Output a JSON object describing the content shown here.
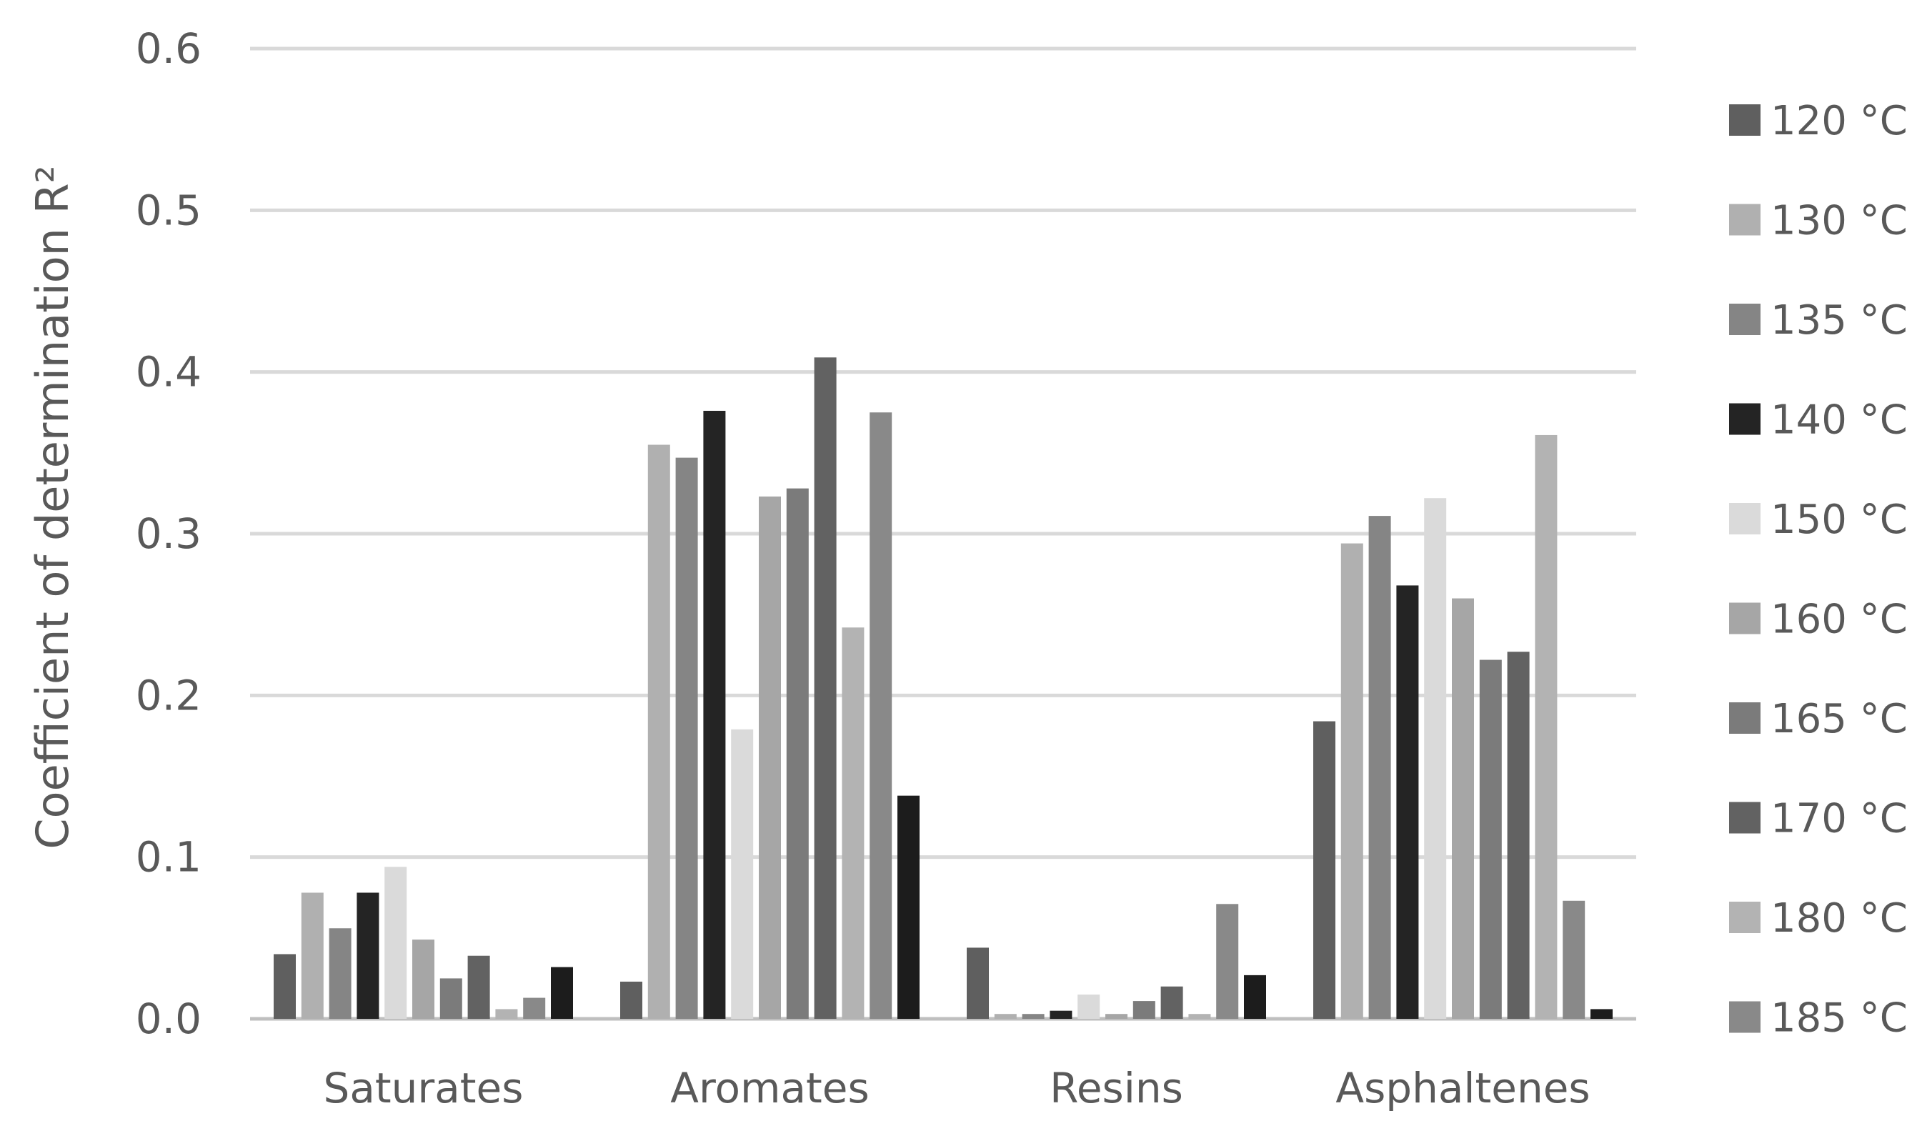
{
  "chart_data": {
    "type": "bar",
    "title": "",
    "xlabel": "",
    "ylabel": "Coefficient of determination R²",
    "ylim": [
      0,
      0.6
    ],
    "yticks": [
      "0.0",
      "0.1",
      "0.2",
      "0.3",
      "0.4",
      "0.5",
      "0.6"
    ],
    "grid": true,
    "legend_position": "right",
    "categories": [
      "Saturates",
      "Aromates",
      "Resins",
      "Asphaltenes"
    ],
    "series": [
      {
        "name": "120 °C",
        "color": "#5f5f5f",
        "values": [
          0.04,
          0.023,
          0.044,
          0.184
        ]
      },
      {
        "name": "130 °C",
        "color": "#b0b0b0",
        "values": [
          0.078,
          0.355,
          0.003,
          0.294
        ]
      },
      {
        "name": "135 °C",
        "color": "#858585",
        "values": [
          0.056,
          0.347,
          0.003,
          0.311
        ]
      },
      {
        "name": "140 °C",
        "color": "#242424",
        "values": [
          0.078,
          0.376,
          0.005,
          0.268
        ]
      },
      {
        "name": "150 °C",
        "color": "#dadada",
        "values": [
          0.094,
          0.179,
          0.015,
          0.322
        ]
      },
      {
        "name": "160 °C",
        "color": "#a6a6a6",
        "values": [
          0.049,
          0.323,
          0.003,
          0.26
        ]
      },
      {
        "name": "165 °C",
        "color": "#7b7b7b",
        "values": [
          0.025,
          0.328,
          0.011,
          0.222
        ]
      },
      {
        "name": "170 °C",
        "color": "#626262",
        "values": [
          0.039,
          0.409,
          0.02,
          0.227
        ]
      },
      {
        "name": "180 °C",
        "color": "#b3b3b3",
        "values": [
          0.006,
          0.242,
          0.003,
          0.361
        ]
      },
      {
        "name": "185 °C",
        "color": "#898989",
        "values": [
          0.013,
          0.375,
          0.071,
          0.073
        ]
      },
      {
        "name": "",
        "color": "#1c1c1c",
        "values": [
          0.032,
          0.138,
          0.027,
          0.006
        ]
      }
    ]
  }
}
